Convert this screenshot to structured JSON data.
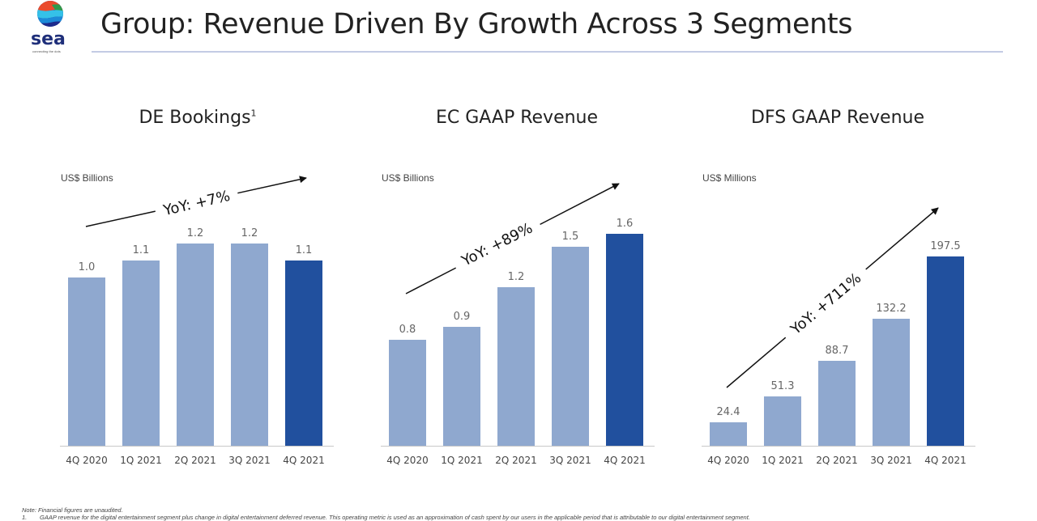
{
  "header": {
    "logo_word": "sea",
    "logo_tagline": "connecting the dots",
    "title": "Group: Revenue Driven By Growth Across 3 Segments"
  },
  "colors": {
    "bar_light": "#8fa8cf",
    "bar_dark": "#21509e",
    "rule": "#c3cbe4",
    "arrow": "#111111",
    "value_label": "#666666"
  },
  "chart_data": [
    {
      "type": "bar",
      "title": "DE Bookings",
      "title_footnote": "1",
      "ylabel": "US$ Billions",
      "categories": [
        "4Q 2020",
        "1Q 2021",
        "2Q 2021",
        "3Q 2021",
        "4Q 2021"
      ],
      "values": [
        1.0,
        1.1,
        1.2,
        1.2,
        1.1
      ],
      "value_labels": [
        "1.0",
        "1.1",
        "1.2",
        "1.2",
        "1.1"
      ],
      "highlight_index": 4,
      "annotation": "YoY: +7%",
      "ylim": [
        0,
        1.25
      ],
      "grid": false
    },
    {
      "type": "bar",
      "title": "EC GAAP Revenue",
      "title_footnote": "",
      "ylabel": "US$ Billions",
      "categories": [
        "4Q 2020",
        "1Q 2021",
        "2Q 2021",
        "3Q 2021",
        "4Q 2021"
      ],
      "values": [
        0.8,
        0.9,
        1.2,
        1.5,
        1.6
      ],
      "value_labels": [
        "0.8",
        "0.9",
        "1.2",
        "1.5",
        "1.6"
      ],
      "highlight_index": 4,
      "annotation": "YoY: +89%",
      "ylim": [
        0,
        1.6
      ],
      "grid": false
    },
    {
      "type": "bar",
      "title": "DFS GAAP Revenue",
      "title_footnote": "",
      "ylabel": "US$ Millions",
      "categories": [
        "4Q 2020",
        "1Q 2021",
        "2Q 2021",
        "3Q 2021",
        "4Q 2021"
      ],
      "values": [
        24.4,
        51.3,
        88.7,
        132.2,
        197.5
      ],
      "value_labels": [
        "24.4",
        "51.3",
        "88.7",
        "132.2",
        "197.5"
      ],
      "highlight_index": 4,
      "annotation": "YoY: +711%",
      "ylim": [
        0,
        197.5
      ],
      "grid": false
    }
  ],
  "footer": {
    "note": "Note: Financial figures are unaudited.",
    "footnote_number": "1.",
    "footnote_text": "GAAP revenue for the digital entertainment segment plus change in digital entertainment deferred revenue. This operating metric is used as an approximation of cash spent by our users in the applicable period that is attributable to our digital entertainment segment."
  }
}
